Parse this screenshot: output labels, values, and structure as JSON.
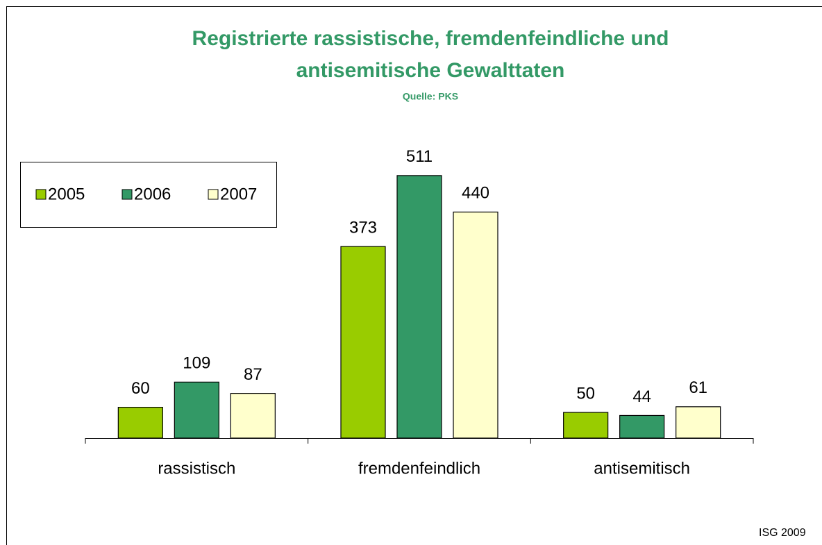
{
  "chart_data": {
    "type": "bar",
    "title": [
      "Registrierte rassistische, fremdenfeindliche und",
      "antisemitische Gewalttaten"
    ],
    "subtitle": "Quelle: PKS",
    "categories": [
      "rassistisch",
      "fremdenfeindlich",
      "antisemitisch"
    ],
    "series": [
      {
        "name": "2005",
        "color": "#99cc00",
        "values": [
          60,
          373,
          50
        ]
      },
      {
        "name": "2006",
        "color": "#339966",
        "values": [
          109,
          511,
          44
        ]
      },
      {
        "name": "2007",
        "color": "#ffffcc",
        "values": [
          87,
          440,
          61
        ]
      }
    ],
    "ylim": [
      0,
      600
    ],
    "legend": "top-left",
    "source": "ISG 2009"
  }
}
